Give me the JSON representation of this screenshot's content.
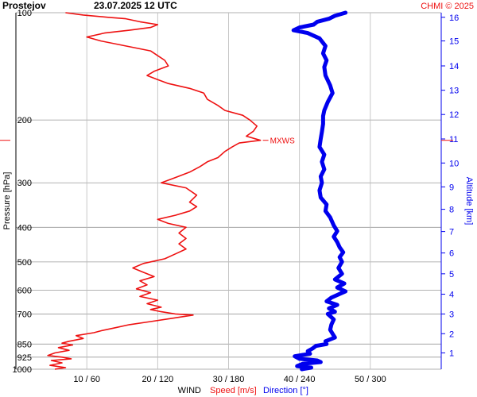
{
  "header": {
    "station": "Prostejov",
    "datetime": "23.07.2025 12 UTC",
    "credit": "CHMI © 2025"
  },
  "chart_data": {
    "type": "line",
    "title": "Prostejov    23.07.2025 12 UTC",
    "ylabel": "Pressure [hPa]",
    "y2label": "Altitude [km]",
    "xlabel_prefix": "WIND",
    "xlabel_speed": "Speed [m/s]",
    "xlabel_direction": "Direction [°]",
    "y_scale": "log",
    "ylim": [
      1000,
      100
    ],
    "y_ticks": [
      100,
      200,
      300,
      400,
      500,
      600,
      700,
      850,
      925,
      1000
    ],
    "x_speed_range": [
      0,
      60
    ],
    "x_direction_range": [
      0,
      360
    ],
    "x_ticks": [
      {
        "speed": 10,
        "label": "10 / 60"
      },
      {
        "speed": 20,
        "label": "20 / 120"
      },
      {
        "speed": 30,
        "label": "30 / 180"
      },
      {
        "speed": 40,
        "label": "40 / 240"
      },
      {
        "speed": 50,
        "label": "50 / 300"
      }
    ],
    "altitude_ticks_km": [
      1,
      2,
      3,
      4,
      5,
      6,
      7,
      8,
      9,
      10,
      11,
      12,
      13,
      14,
      15,
      16
    ],
    "altitude_pressure": [
      [
        1,
        900
      ],
      [
        2,
        795
      ],
      [
        3,
        700
      ],
      [
        4,
        616
      ],
      [
        5,
        540
      ],
      [
        6,
        472
      ],
      [
        7,
        411
      ],
      [
        8,
        356
      ],
      [
        9,
        308
      ],
      [
        10,
        264
      ],
      [
        11,
        226
      ],
      [
        12,
        193
      ],
      [
        13,
        165
      ],
      [
        14,
        141
      ],
      [
        15,
        120
      ],
      [
        16,
        103
      ]
    ],
    "max_wind_marker": {
      "label": "MXWS",
      "pressure": 228
    },
    "colors": {
      "speed": "#ee1111",
      "direction": "#0000ee",
      "grid": "#999999",
      "title": "#000000"
    },
    "series": [
      {
        "name": "Speed [m/s]",
        "unit": "m/s",
        "points": [
          [
            1000,
            5.5
          ],
          [
            990,
            7.0
          ],
          [
            975,
            4.8
          ],
          [
            960,
            6.5
          ],
          [
            945,
            5.0
          ],
          [
            935,
            7.8
          ],
          [
            925,
            6.5
          ],
          [
            915,
            4.5
          ],
          [
            900,
            5.5
          ],
          [
            885,
            7.5
          ],
          [
            870,
            6.0
          ],
          [
            855,
            8.0
          ],
          [
            845,
            6.5
          ],
          [
            835,
            7.5
          ],
          [
            820,
            9.5
          ],
          [
            805,
            8.5
          ],
          [
            790,
            11.0
          ],
          [
            780,
            12.0
          ],
          [
            765,
            14.0
          ],
          [
            750,
            16.0
          ],
          [
            735,
            19.0
          ],
          [
            720,
            22.0
          ],
          [
            705,
            25.0
          ],
          [
            700,
            22.5
          ],
          [
            690,
            20.5
          ],
          [
            680,
            19.0
          ],
          [
            670,
            20.5
          ],
          [
            655,
            18.5
          ],
          [
            640,
            20.0
          ],
          [
            625,
            17.5
          ],
          [
            610,
            19.0
          ],
          [
            595,
            17.0
          ],
          [
            580,
            18.5
          ],
          [
            565,
            17.5
          ],
          [
            550,
            19.5
          ],
          [
            535,
            18.0
          ],
          [
            520,
            16.5
          ],
          [
            505,
            18.0
          ],
          [
            490,
            21.0
          ],
          [
            475,
            22.5
          ],
          [
            460,
            24.0
          ],
          [
            445,
            23.0
          ],
          [
            430,
            24.0
          ],
          [
            415,
            23.0
          ],
          [
            400,
            24.0
          ],
          [
            390,
            21.5
          ],
          [
            380,
            20.0
          ],
          [
            370,
            22.5
          ],
          [
            360,
            24.5
          ],
          [
            350,
            25.5
          ],
          [
            340,
            24.5
          ],
          [
            325,
            25.5
          ],
          [
            310,
            24.0
          ],
          [
            300,
            20.5
          ],
          [
            290,
            22.5
          ],
          [
            280,
            24.5
          ],
          [
            270,
            26.0
          ],
          [
            262,
            27.0
          ],
          [
            255,
            28.5
          ],
          [
            245,
            29.5
          ],
          [
            238,
            30.5
          ],
          [
            232,
            31.5
          ],
          [
            228,
            34.5
          ],
          [
            222,
            32.5
          ],
          [
            215,
            33.5
          ],
          [
            208,
            34.0
          ],
          [
            200,
            33.0
          ],
          [
            194,
            32.0
          ],
          [
            188,
            29.5
          ],
          [
            182,
            28.5
          ],
          [
            175,
            27.0
          ],
          [
            168,
            26.5
          ],
          [
            163,
            24.5
          ],
          [
            158,
            21.5
          ],
          [
            154,
            20.0
          ],
          [
            150,
            18.5
          ],
          [
            146,
            19.5
          ],
          [
            141,
            21.5
          ],
          [
            136,
            21.0
          ],
          [
            132,
            20.0
          ],
          [
            128,
            19.0
          ],
          [
            124,
            15.5
          ],
          [
            120,
            12.0
          ],
          [
            117,
            10.0
          ],
          [
            114,
            12.5
          ],
          [
            112,
            16.0
          ],
          [
            110,
            19.0
          ],
          [
            108,
            20.0
          ],
          [
            106,
            17.5
          ],
          [
            104,
            15.5
          ],
          [
            103,
            13.0
          ],
          [
            101.5,
            9.5
          ],
          [
            100,
            7.0
          ]
        ]
      },
      {
        "name": "Direction [°]",
        "unit": "deg",
        "points": [
          [
            1000,
            242
          ],
          [
            990,
            250
          ],
          [
            980,
            238
          ],
          [
            965,
            243
          ],
          [
            955,
            258
          ],
          [
            945,
            255
          ],
          [
            935,
            240
          ],
          [
            920,
            236
          ],
          [
            905,
            249
          ],
          [
            890,
            247
          ],
          [
            875,
            251
          ],
          [
            860,
            254
          ],
          [
            850,
            263
          ],
          [
            835,
            262
          ],
          [
            815,
            270
          ],
          [
            795,
            268
          ],
          [
            775,
            266
          ],
          [
            750,
            267
          ],
          [
            725,
            269
          ],
          [
            700,
            264
          ],
          [
            690,
            270
          ],
          [
            675,
            265
          ],
          [
            660,
            272
          ],
          [
            645,
            263
          ],
          [
            630,
            267
          ],
          [
            615,
            274
          ],
          [
            605,
            279
          ],
          [
            590,
            272
          ],
          [
            575,
            278
          ],
          [
            560,
            270
          ],
          [
            540,
            276
          ],
          [
            520,
            273
          ],
          [
            500,
            276
          ],
          [
            485,
            274
          ],
          [
            470,
            277
          ],
          [
            455,
            274
          ],
          [
            440,
            272
          ],
          [
            425,
            269
          ],
          [
            410,
            272
          ],
          [
            395,
            269
          ],
          [
            375,
            266
          ],
          [
            360,
            262
          ],
          [
            345,
            263
          ],
          [
            330,
            258
          ],
          [
            315,
            257
          ],
          [
            300,
            259
          ],
          [
            288,
            258
          ],
          [
            275,
            261
          ],
          [
            262,
            259
          ],
          [
            250,
            261
          ],
          [
            238,
            257
          ],
          [
            226,
            258
          ],
          [
            216,
            259
          ],
          [
            205,
            260
          ],
          [
            195,
            260
          ],
          [
            188,
            261
          ],
          [
            178,
            264
          ],
          [
            168,
            268
          ],
          [
            160,
            266
          ],
          [
            150,
            262
          ],
          [
            142,
            261
          ],
          [
            136,
            263
          ],
          [
            130,
            260
          ],
          [
            124,
            262
          ],
          [
            118,
            257
          ],
          [
            114,
            247
          ],
          [
            112,
            235
          ],
          [
            110,
            240
          ],
          [
            108,
            252
          ],
          [
            106,
            255
          ],
          [
            104,
            265
          ],
          [
            102,
            270
          ],
          [
            100,
            279
          ]
        ]
      }
    ]
  }
}
